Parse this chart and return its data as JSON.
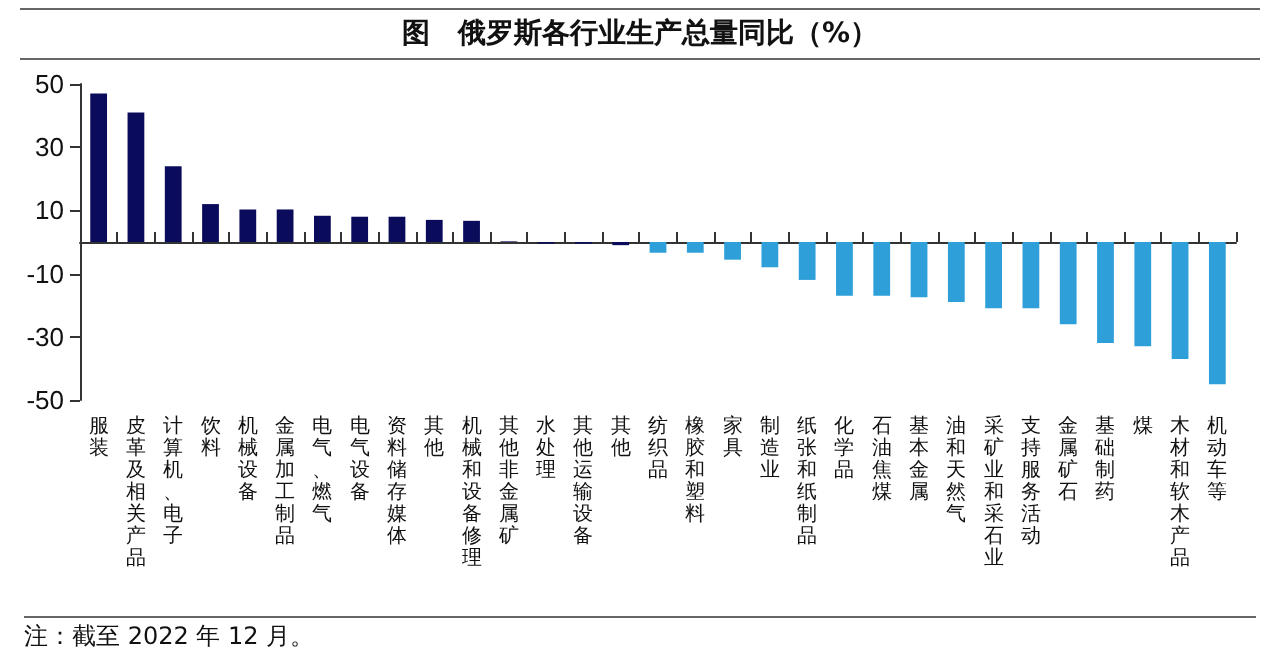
{
  "chart_data": {
    "type": "bar",
    "title": "图　俄罗斯各行业生产总量同比（%）",
    "categories": [
      "服装",
      "皮革及相关产品",
      "计算机、电子",
      "饮料",
      "机械设备",
      "金属加工制品",
      "电气、燃气",
      "电气设备",
      "资料储存媒体",
      "其他",
      "机械和设备修理",
      "其他非金属矿",
      "水处理",
      "其他运输设备",
      "其他",
      "纺织品",
      "橡胶和塑料",
      "家具",
      "制造业",
      "纸张和纸制品",
      "化学品",
      "石油焦煤",
      "基本金属",
      "油和天然气",
      "采矿业和采石业",
      "支持服务活动",
      "金属矿石",
      "基础制药",
      "煤",
      "木材和软木产品",
      "机动车等"
    ],
    "values": [
      47,
      41,
      24,
      12,
      10.3,
      10.3,
      8.3,
      8,
      8,
      7,
      6.7,
      0.2,
      -0.5,
      -0.5,
      -1,
      -3.4,
      -3.4,
      -5.6,
      -8,
      -12,
      -17,
      -17,
      -17.5,
      -19,
      -21,
      -21,
      -26,
      -32,
      -33,
      -37,
      -45
    ],
    "colors": [
      "#0b0b5c",
      "#0b0b5c",
      "#0b0b5c",
      "#0b0b5c",
      "#0b0b5c",
      "#0b0b5c",
      "#0b0b5c",
      "#0b0b5c",
      "#0b0b5c",
      "#0b0b5c",
      "#0b0b5c",
      "#0b0b5c",
      "#0b0b5c",
      "#0b0b5c",
      "#0b0b5c",
      "#2e9fd8",
      "#2e9fd8",
      "#2e9fd8",
      "#2e9fd8",
      "#2e9fd8",
      "#2e9fd8",
      "#2e9fd8",
      "#2e9fd8",
      "#2e9fd8",
      "#2e9fd8",
      "#2e9fd8",
      "#2e9fd8",
      "#2e9fd8",
      "#2e9fd8",
      "#2e9fd8",
      "#2e9fd8"
    ],
    "ylim": [
      -50,
      50
    ],
    "yticks": [
      -50,
      -30,
      -10,
      10,
      30,
      50
    ],
    "grid": false,
    "annotations": [
      "注：截至 2022 年 12 月。"
    ]
  }
}
